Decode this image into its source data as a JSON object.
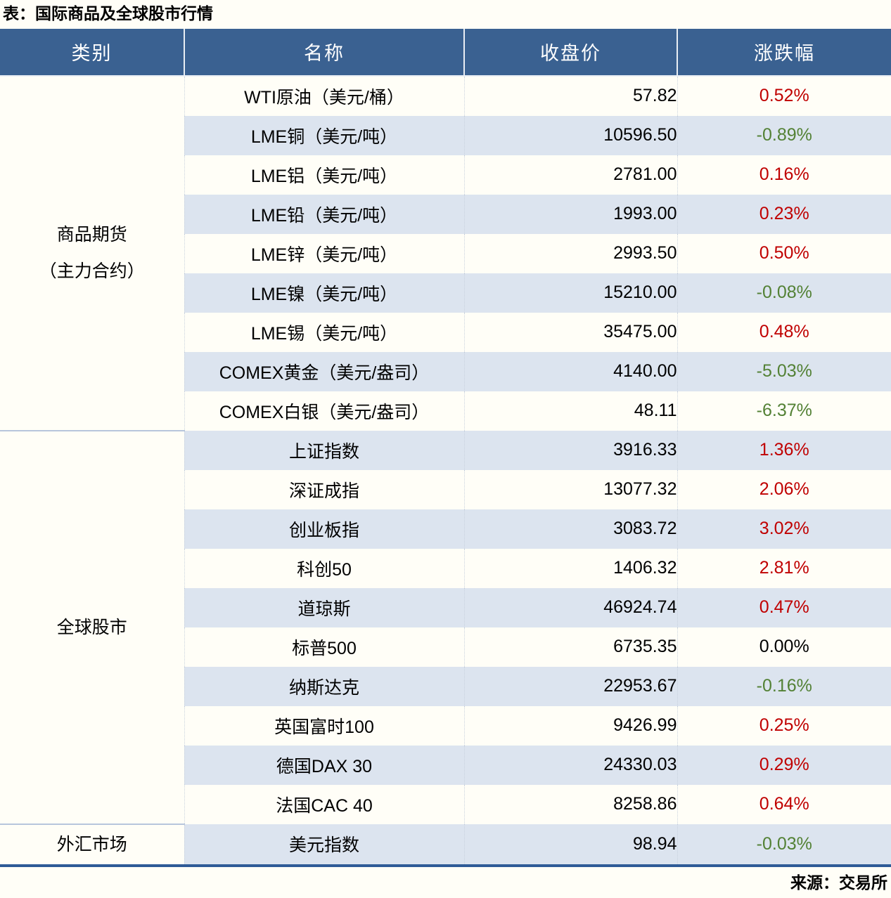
{
  "title": "表：国际商品及全球股市行情",
  "source": "来源：交易所",
  "colors": {
    "up": "#C00000",
    "down": "#538135",
    "flat": "#000000",
    "header_bg": "#3A6191",
    "stripe_bg": "#DCE4EF",
    "table_border": "#2F5B97"
  },
  "table": {
    "headers": [
      "类别",
      "名称",
      "收盘价",
      "涨跌幅"
    ],
    "sections": [
      {
        "category": "商品期货\n（主力合约）",
        "rows": [
          {
            "name": "WTI原油（美元/桶）",
            "close": "57.82",
            "change": "0.52%",
            "direction": "up"
          },
          {
            "name": "LME铜（美元/吨）",
            "close": "10596.50",
            "change": "-0.89%",
            "direction": "down"
          },
          {
            "name": "LME铝（美元/吨）",
            "close": "2781.00",
            "change": "0.16%",
            "direction": "up"
          },
          {
            "name": "LME铅（美元/吨）",
            "close": "1993.00",
            "change": "0.23%",
            "direction": "up"
          },
          {
            "name": "LME锌（美元/吨）",
            "close": "2993.50",
            "change": "0.50%",
            "direction": "up"
          },
          {
            "name": "LME镍（美元/吨）",
            "close": "15210.00",
            "change": "-0.08%",
            "direction": "down"
          },
          {
            "name": "LME锡（美元/吨）",
            "close": "35475.00",
            "change": "0.48%",
            "direction": "up"
          },
          {
            "name": "COMEX黄金（美元/盎司）",
            "close": "4140.00",
            "change": "-5.03%",
            "direction": "down"
          },
          {
            "name": "COMEX白银（美元/盎司）",
            "close": "48.11",
            "change": "-6.37%",
            "direction": "down"
          }
        ]
      },
      {
        "category": "全球股市",
        "rows": [
          {
            "name": "上证指数",
            "close": "3916.33",
            "change": "1.36%",
            "direction": "up"
          },
          {
            "name": "深证成指",
            "close": "13077.32",
            "change": "2.06%",
            "direction": "up"
          },
          {
            "name": "创业板指",
            "close": "3083.72",
            "change": "3.02%",
            "direction": "up"
          },
          {
            "name": "科创50",
            "close": "1406.32",
            "change": "2.81%",
            "direction": "up"
          },
          {
            "name": "道琼斯",
            "close": "46924.74",
            "change": "0.47%",
            "direction": "up"
          },
          {
            "name": "标普500",
            "close": "6735.35",
            "change": "0.00%",
            "direction": "flat"
          },
          {
            "name": "纳斯达克",
            "close": "22953.67",
            "change": "-0.16%",
            "direction": "down"
          },
          {
            "name": "英国富时100",
            "close": "9426.99",
            "change": "0.25%",
            "direction": "up"
          },
          {
            "name": "德国DAX 30",
            "close": "24330.03",
            "change": "0.29%",
            "direction": "up"
          },
          {
            "name": "法国CAC 40",
            "close": "8258.86",
            "change": "0.64%",
            "direction": "up"
          }
        ]
      },
      {
        "category": "外汇市场",
        "rows": [
          {
            "name": "美元指数",
            "close": "98.94",
            "change": "-0.03%",
            "direction": "down"
          }
        ]
      }
    ]
  }
}
